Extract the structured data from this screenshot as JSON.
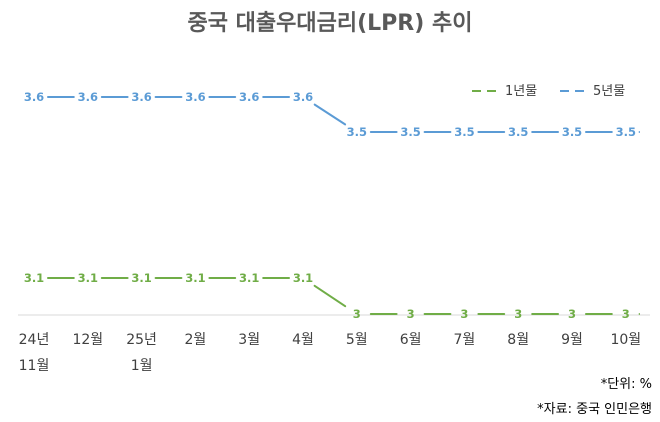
{
  "chart_data": {
    "type": "line",
    "title": "중국 대출우대금리(LPR) 추이",
    "categories": [
      [
        "24년",
        "11월"
      ],
      [
        "12월"
      ],
      [
        "25년",
        "1월"
      ],
      [
        "2월"
      ],
      [
        "3월"
      ],
      [
        "4월"
      ],
      [
        "5월"
      ],
      [
        "6월"
      ],
      [
        "7월"
      ],
      [
        "8월"
      ],
      [
        "9월"
      ],
      [
        "10월"
      ]
    ],
    "series": [
      {
        "name": "1년물",
        "color": "#70ad47",
        "values": [
          3.1,
          3.1,
          3.1,
          3.1,
          3.1,
          3.1,
          3,
          3,
          3,
          3,
          3,
          3
        ],
        "labels": [
          "3.1",
          "3.1",
          "3.1",
          "3.1",
          "3.1",
          "3.1",
          "3",
          "3",
          "3",
          "3",
          "3",
          "3"
        ]
      },
      {
        "name": "5년물",
        "color": "#5b9bd5",
        "values": [
          3.6,
          3.6,
          3.6,
          3.6,
          3.6,
          3.6,
          3.5,
          3.5,
          3.5,
          3.5,
          3.5,
          3.5
        ],
        "labels": [
          "3.6",
          "3.6",
          "3.6",
          "3.6",
          "3.6",
          "3.6",
          "3.5",
          "3.5",
          "3.5",
          "3.5",
          "3.5",
          "3.5"
        ]
      }
    ],
    "ylim": [
      3.0,
      3.6
    ],
    "grid": false,
    "legend_position": "top-right",
    "notes": [
      "*단위: %",
      "*자료: 중국 인민은행"
    ]
  }
}
